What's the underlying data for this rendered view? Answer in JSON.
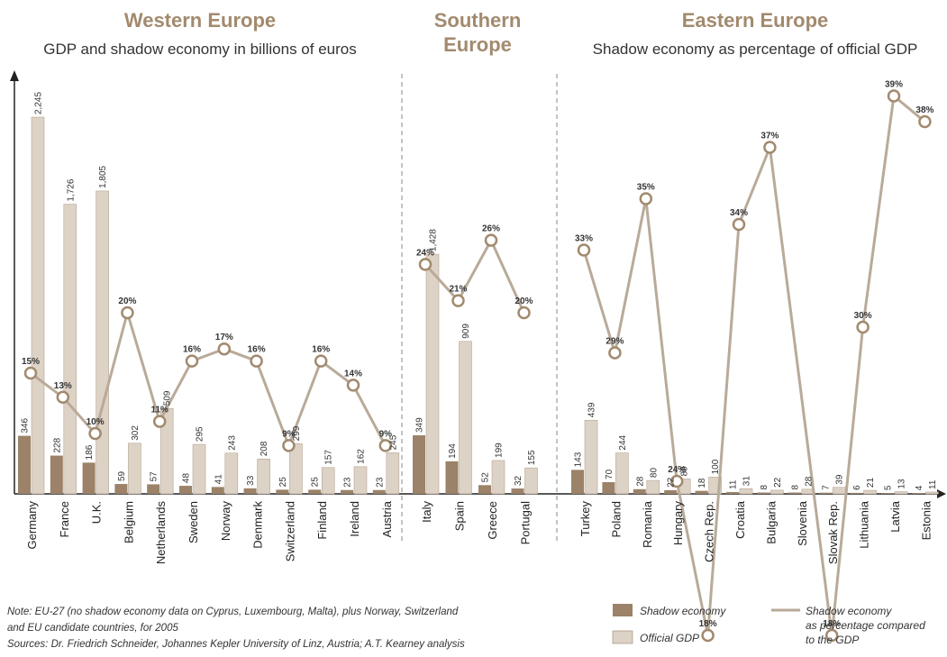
{
  "titles": {
    "western": "Western Europe",
    "western_sub": "GDP and shadow economy in billions of euros",
    "southern_line1": "Southern",
    "southern_line2": "Europe",
    "eastern": "Eastern Europe",
    "eastern_sub": "Shadow economy as percentage of official GDP"
  },
  "colors": {
    "shadow": "#9b8268",
    "official": "#ddd2c6",
    "line": "#b9aa99",
    "marker_fill": "#ffffff",
    "marker_stroke": "#a28a6e"
  },
  "chart_data": {
    "type": "bar",
    "series": [
      {
        "name": "Shadow economy"
      },
      {
        "name": "Official GDP"
      },
      {
        "name": "Shadow economy as percentage compared to the GDP"
      }
    ],
    "groups": [
      {
        "name": "Western Europe",
        "countries": [
          {
            "country": "Germany",
            "shadow": 346,
            "gdp": 2245,
            "gdp_label": "2,245",
            "pct": 15
          },
          {
            "country": "France",
            "shadow": 228,
            "gdp": 1726,
            "gdp_label": "1,726",
            "pct": 13
          },
          {
            "country": "U.K.",
            "shadow": 186,
            "gdp": 1805,
            "gdp_label": "1,805",
            "pct": 10
          },
          {
            "country": "Belgium",
            "shadow": 59,
            "gdp": 302,
            "gdp_label": "302",
            "pct": 20
          },
          {
            "country": "Netherlands",
            "shadow": 57,
            "gdp": 509,
            "gdp_label": "509",
            "pct": 11
          },
          {
            "country": "Sweden",
            "shadow": 48,
            "gdp": 295,
            "gdp_label": "295",
            "pct": 16
          },
          {
            "country": "Norway",
            "shadow": 41,
            "gdp": 243,
            "gdp_label": "243",
            "pct": 17
          },
          {
            "country": "Denmark",
            "shadow": 33,
            "gdp": 208,
            "gdp_label": "208",
            "pct": 16
          },
          {
            "country": "Switzerland",
            "shadow": 25,
            "gdp": 299,
            "gdp_label": "299",
            "pct": 9
          },
          {
            "country": "Finland",
            "shadow": 25,
            "gdp": 157,
            "gdp_label": "157",
            "pct": 16
          },
          {
            "country": "Ireland",
            "shadow": 23,
            "gdp": 162,
            "gdp_label": "162",
            "pct": 14
          },
          {
            "country": "Austria",
            "shadow": 23,
            "gdp": 245,
            "gdp_label": "245",
            "pct": 9
          }
        ]
      },
      {
        "name": "Southern Europe",
        "countries": [
          {
            "country": "Italy",
            "shadow": 349,
            "gdp": 1428,
            "gdp_label": "1,428",
            "pct": 24
          },
          {
            "country": "Spain",
            "shadow": 194,
            "gdp": 909,
            "gdp_label": "909",
            "pct": 21
          },
          {
            "country": "Greece",
            "shadow": 52,
            "gdp": 199,
            "gdp_label": "199",
            "pct": 26
          },
          {
            "country": "Portugal",
            "shadow": 32,
            "gdp": 155,
            "gdp_label": "155",
            "pct": 20
          }
        ]
      },
      {
        "name": "Eastern Europe",
        "countries": [
          {
            "country": "Turkey",
            "shadow": 143,
            "gdp": 439,
            "gdp_label": "439",
            "pct": 33
          },
          {
            "country": "Poland",
            "shadow": 70,
            "gdp": 244,
            "gdp_label": "244",
            "pct": 29
          },
          {
            "country": "Romania",
            "shadow": 28,
            "gdp": 80,
            "gdp_label": "80",
            "pct": 35
          },
          {
            "country": "Hungary",
            "shadow": 22,
            "gdp": 89,
            "gdp_label": "89",
            "pct": 24
          },
          {
            "country": "Czech Rep.",
            "shadow": 18,
            "gdp": 100,
            "gdp_label": "100",
            "pct": 18
          },
          {
            "country": "Croatia",
            "shadow": 11,
            "gdp": 31,
            "gdp_label": "31",
            "pct": 34
          },
          {
            "country": "Bulgaria",
            "shadow": 8,
            "gdp": 22,
            "gdp_label": "22",
            "pct": 37
          },
          {
            "country": "Slovenia",
            "shadow": 8,
            "gdp": 28,
            "gdp_label": "28",
            "pct": null
          },
          {
            "country": "Slovak Rep.",
            "shadow": 7,
            "gdp": 39,
            "gdp_label": "39",
            "pct": 18
          },
          {
            "country": "Lithuania",
            "shadow": 6,
            "gdp": 21,
            "gdp_label": "21",
            "pct": 30
          },
          {
            "country": "Latvia",
            "shadow": 5,
            "gdp": 13,
            "gdp_label": "13",
            "pct": 39
          },
          {
            "country": "Estonia",
            "shadow": 4,
            "gdp": 11,
            "gdp_label": "11",
            "pct": 38
          }
        ]
      }
    ],
    "legend": {
      "shadow": "Shadow economy",
      "official": "Official GDP",
      "line_1": "Shadow economy",
      "line_2": "as percentage compared",
      "line_3": "to the GDP"
    }
  },
  "footer": {
    "note_1": "Note: EU-27 (no shadow economy data on Cyprus, Luxembourg, Malta), plus Norway, Switzerland",
    "note_2": "and EU candidate countries, for 2005",
    "sources": "Sources: Dr. Friedrich Schneider, Johannes Kepler University of Linz, Austria; A.T. Kearney analysis"
  }
}
